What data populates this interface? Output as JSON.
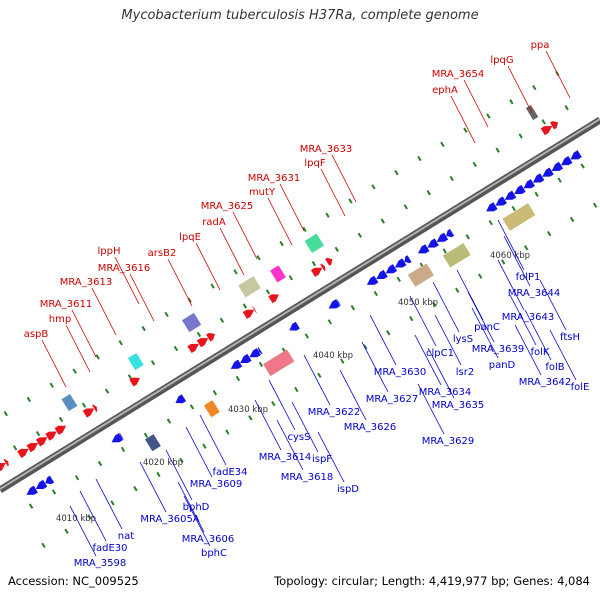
{
  "title": "Mycobacterium tuberculosis H37Ra, complete genome",
  "footer": {
    "accession": "Accession: NC_009525",
    "topology": "Topology: circular; Length: 4,419,977 bp; Genes: 4,084"
  },
  "colors": {
    "forward_gene": "#e8141c",
    "reverse_gene": "#1414e6",
    "forward_label": "#cc0000",
    "reverse_label": "#0000cc",
    "backbone": "#888888",
    "tick": "#2a7d2a",
    "scale_text": "#333333"
  },
  "scale_labels": [
    "4010 kbp",
    "4020 kbp",
    "4030 kbp",
    "4040 kbp",
    "4050 kbp",
    "4060 kbp"
  ],
  "forward_labels": [
    "ppa",
    "lpqG",
    "MRA_3654",
    "ephA",
    "MRA_3633",
    "lpqF",
    "MRA_3631",
    "mutY",
    "MRA_3625",
    "radA",
    "lpqE",
    "arsB2",
    "lppH",
    "MRA_3616",
    "MRA_3613",
    "MRA_3611",
    "hmp",
    "aspB"
  ],
  "reverse_labels": [
    "folP1",
    "MRA_3644",
    "ftsH",
    "MRA_3643",
    "folK",
    "folB",
    "folE",
    "MRA_3642",
    "panC",
    "MRA_3639",
    "panD",
    "lysS",
    "lsr2",
    "clpC1",
    "MRA_3634",
    "MRA_3635",
    "MRA_3630",
    "MRA_3627",
    "MRA_3629",
    "MRA_3626",
    "MRA_3622",
    "cysS",
    "ispF",
    "ispD",
    "MRA_3618",
    "MRA_3614",
    "fadE34",
    "MRA_3609",
    "bphD",
    "MRA_3605A",
    "MRA_3606",
    "bphC",
    "nat",
    "fadE30",
    "MRA_3598"
  ]
}
